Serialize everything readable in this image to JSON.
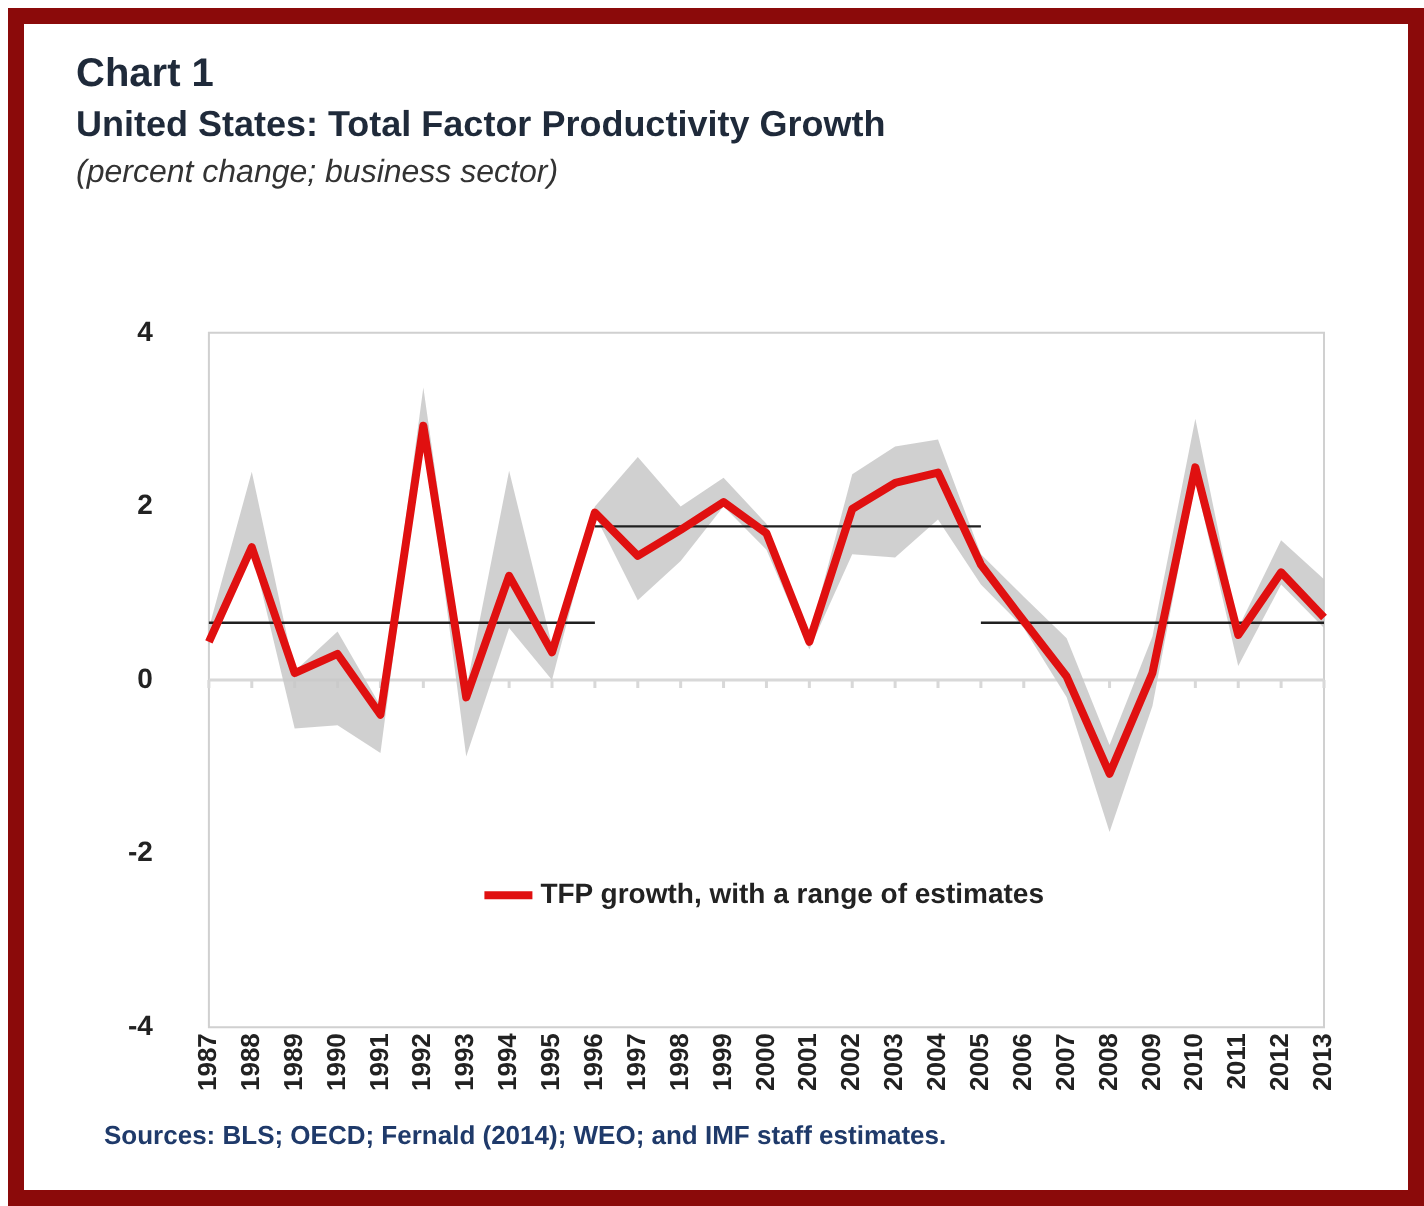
{
  "chart_data": {
    "type": "line",
    "title": "Chart 1",
    "subtitle": "United States: Total Factor Productivity Growth",
    "ylabel": "(percent change; business sector)",
    "categories": [
      "1987",
      "1988",
      "1989",
      "1990",
      "1991",
      "1992",
      "1993",
      "1994",
      "1995",
      "1996",
      "1997",
      "1998",
      "1999",
      "2000",
      "2001",
      "2002",
      "2003",
      "2004",
      "2005",
      "2006",
      "2007",
      "2008",
      "2009",
      "2010",
      "2011",
      "2012",
      "2013"
    ],
    "series": [
      {
        "name": "TFP growth, with a range of estimates",
        "color": "#e01010",
        "values": [
          0.44,
          1.53,
          0.08,
          0.3,
          -0.4,
          2.93,
          -0.2,
          1.2,
          0.32,
          1.93,
          1.43,
          1.73,
          2.05,
          1.69,
          0.44,
          1.97,
          2.27,
          2.39,
          1.33,
          0.68,
          0.04,
          -1.08,
          0.08,
          2.45,
          0.52,
          1.24,
          0.72
        ],
        "lower": [
          0.4,
          1.5,
          -0.56,
          -0.52,
          -0.84,
          2.9,
          -0.88,
          0.6,
          0.0,
          1.9,
          0.92,
          1.37,
          2.0,
          1.5,
          0.35,
          1.45,
          1.41,
          1.85,
          1.1,
          0.6,
          -0.2,
          -1.75,
          -0.3,
          2.3,
          0.16,
          1.1,
          0.6
        ],
        "upper": [
          0.6,
          2.4,
          0.1,
          0.56,
          -0.3,
          3.37,
          -0.1,
          2.41,
          0.4,
          2.0,
          2.57,
          2.0,
          2.33,
          1.8,
          0.5,
          2.37,
          2.69,
          2.77,
          1.45,
          0.96,
          0.48,
          -0.75,
          0.5,
          3.01,
          0.6,
          1.61,
          1.16
        ]
      },
      {
        "color": "#202020",
        "values": [
          0.66,
          0.66,
          0.66,
          0.66,
          0.66,
          0.66,
          0.66,
          0.66,
          0.66,
          0.66,
          null,
          null,
          null,
          null,
          null,
          null,
          null,
          null,
          null,
          null,
          null,
          null,
          null,
          null,
          null,
          null,
          null
        ]
      },
      {
        "color": "#202020",
        "values": [
          null,
          null,
          null,
          null,
          null,
          null,
          null,
          null,
          null,
          1.77,
          1.77,
          1.77,
          1.77,
          1.77,
          1.77,
          1.77,
          1.77,
          1.77,
          1.77,
          null,
          null,
          null,
          null,
          null,
          null,
          null,
          null
        ]
      },
      {
        "color": "#202020",
        "values": [
          null,
          null,
          null,
          null,
          null,
          null,
          null,
          null,
          null,
          null,
          null,
          null,
          null,
          null,
          null,
          null,
          null,
          null,
          0.66,
          0.66,
          0.66,
          0.66,
          0.66,
          0.66,
          0.66,
          0.66,
          0.66
        ]
      }
    ],
    "ylim": [
      -4,
      4
    ],
    "yticks": [
      -4,
      -2,
      0,
      2,
      4
    ],
    "ref_lines": [
      {
        "axis": "y",
        "value": 0,
        "color": "#d8d8d8"
      }
    ],
    "legend": "bottom",
    "grid": false,
    "annotations": [
      "Sources: BLS; OECD; Fernald (2014); WEO; and IMF staff estimates."
    ]
  }
}
